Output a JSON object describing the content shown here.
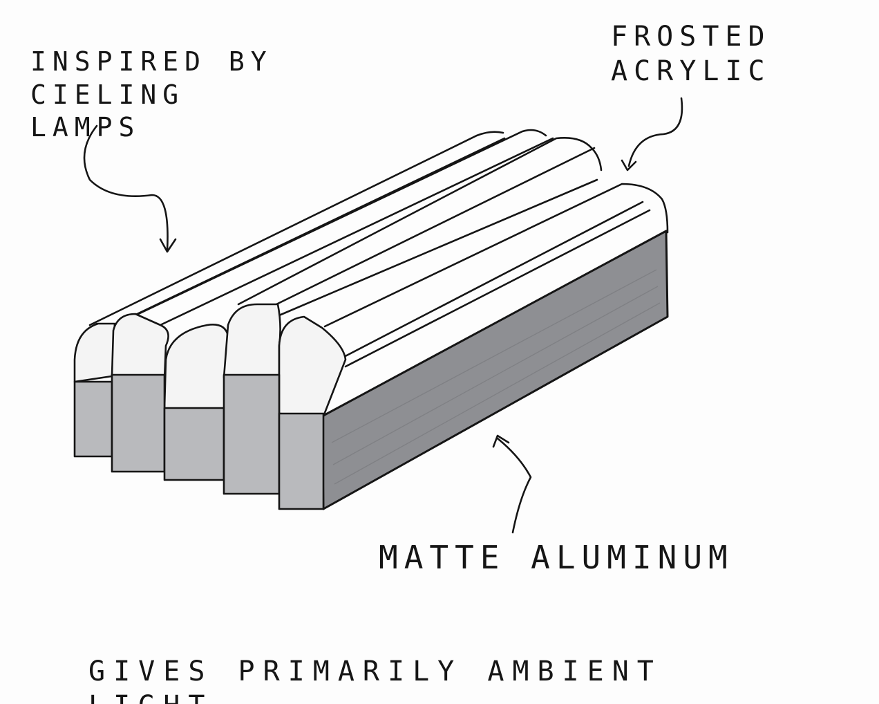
{
  "annotations": {
    "inspiration": "INSPIRED BY CIELING\nLAMPS",
    "top_material": "FROSTED\nACRYLIC",
    "base_material": "MATTE ALUMINUM",
    "caption": "GIVES PRIMARILY AMBIENT LIGHT"
  },
  "colors": {
    "ink": "#151515",
    "acrylic": "#f4f4f4",
    "aluminum_front": "#b9babd",
    "aluminum_side": "#8e8f93",
    "paper": "#fdfdfd"
  }
}
